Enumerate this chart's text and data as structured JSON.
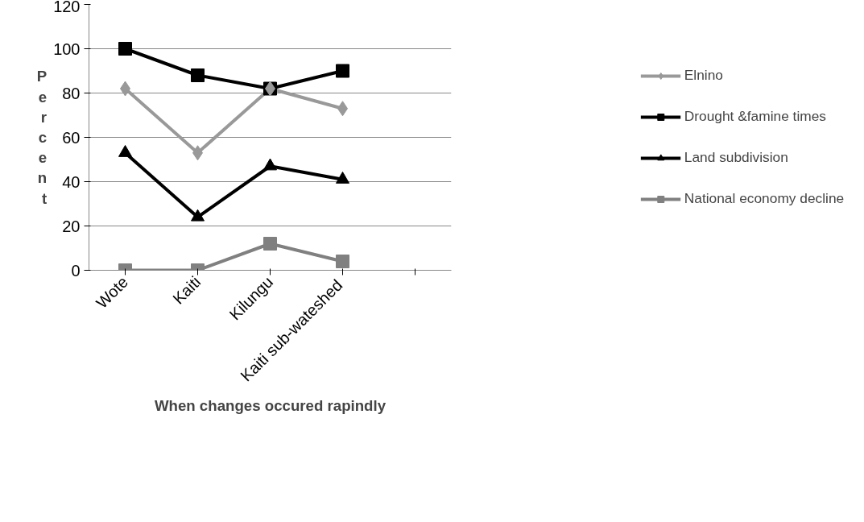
{
  "chart_data": {
    "type": "line",
    "xlabel": "When changes occured rapindly",
    "ylabel": "Percent",
    "categories": [
      "Wote",
      "Kaiti",
      "Kilungu",
      "Kaiti  sub-wateshed",
      null
    ],
    "ylim": [
      0,
      120
    ],
    "yticks": [
      0,
      20,
      40,
      60,
      80,
      100,
      120
    ],
    "grid": "y",
    "legend": "right",
    "series": [
      {
        "name": "Elnino",
        "color": "#999999",
        "marker": "diamond",
        "values": [
          82,
          53,
          82,
          73,
          null
        ]
      },
      {
        "name": "Drought &famine times",
        "color": "#000000",
        "marker": "square",
        "values": [
          100,
          88,
          82,
          90,
          null
        ]
      },
      {
        "name": "Land subdivision",
        "color": "#000000",
        "marker": "triangle",
        "values": [
          53,
          24,
          47,
          41,
          null
        ]
      },
      {
        "name": "National economy decline",
        "color": "#808080",
        "marker": "square",
        "values": [
          0,
          0,
          12,
          4,
          null
        ]
      }
    ]
  }
}
